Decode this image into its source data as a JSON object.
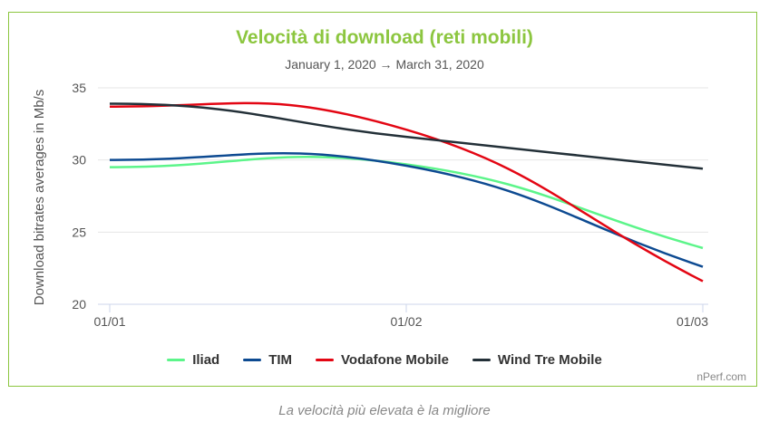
{
  "chart_data": {
    "type": "line",
    "title": "Velocità di download (reti mobili)",
    "subtitle": "January 1, 2020 → March 31, 2020",
    "ylabel": "Download bitrates averages in Mb/s",
    "xlabel": "",
    "categories": [
      "01/01",
      "01/02",
      "01/03"
    ],
    "ylim": [
      20,
      35
    ],
    "yticks": [
      "20",
      "25",
      "30",
      "35"
    ],
    "grid": true,
    "legend_position": "bottom",
    "series": [
      {
        "name": "Iliad",
        "color": "#5cf58a",
        "values": [
          29.5,
          29.7,
          23.9
        ]
      },
      {
        "name": "TIM",
        "color": "#0d4a91",
        "values": [
          30.0,
          29.6,
          22.6
        ]
      },
      {
        "name": "Vodafone Mobile",
        "color": "#e30613",
        "values": [
          33.7,
          32.1,
          21.6
        ]
      },
      {
        "name": "Wind Tre Mobile",
        "color": "#233038",
        "values": [
          33.9,
          31.6,
          29.4
        ]
      }
    ]
  },
  "credit": "nPerf.com",
  "caption": "La velocità più elevata è la migliore"
}
